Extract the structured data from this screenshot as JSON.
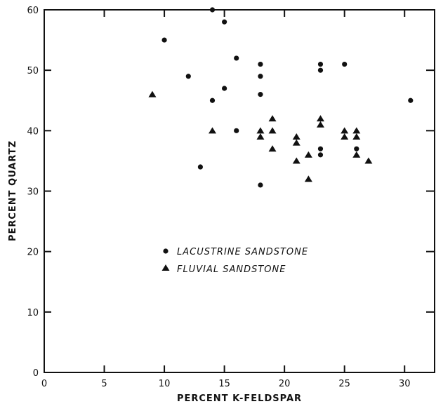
{
  "chart_data": {
    "type": "scatter",
    "title": "",
    "xlabel": "PERCENT K-FELDSPAR",
    "ylabel": "PERCENT QUARTZ",
    "xlim": [
      0,
      32.5
    ],
    "ylim": [
      0,
      60
    ],
    "xticks": [
      0,
      5,
      10,
      15,
      20,
      25,
      30
    ],
    "yticks": [
      0,
      10,
      20,
      30,
      40,
      50,
      60
    ],
    "grid": false,
    "legend_position": "center-left",
    "series": [
      {
        "name": "LACUSTRINE SANDSTONE",
        "marker": "circle",
        "color": "#111111",
        "points": [
          [
            10,
            55
          ],
          [
            12,
            49
          ],
          [
            13,
            34
          ],
          [
            14,
            60
          ],
          [
            14,
            45
          ],
          [
            15,
            58
          ],
          [
            15,
            47
          ],
          [
            16,
            52
          ],
          [
            16,
            40
          ],
          [
            18,
            51
          ],
          [
            18,
            49
          ],
          [
            18,
            46
          ],
          [
            18,
            31
          ],
          [
            23,
            51
          ],
          [
            23,
            50
          ],
          [
            23,
            37
          ],
          [
            23,
            36
          ],
          [
            25,
            51
          ],
          [
            26,
            37
          ],
          [
            30.5,
            45
          ]
        ]
      },
      {
        "name": "FLUVIAL SANDSTONE",
        "marker": "triangle",
        "color": "#111111",
        "points": [
          [
            9,
            46
          ],
          [
            14,
            40
          ],
          [
            18,
            40
          ],
          [
            18,
            39
          ],
          [
            19,
            42
          ],
          [
            19,
            40
          ],
          [
            19,
            37
          ],
          [
            21,
            39
          ],
          [
            21,
            38
          ],
          [
            21,
            35
          ],
          [
            22,
            36
          ],
          [
            22,
            32
          ],
          [
            23,
            42
          ],
          [
            23,
            41
          ],
          [
            25,
            40
          ],
          [
            25,
            39
          ],
          [
            26,
            40
          ],
          [
            26,
            39
          ],
          [
            26,
            36
          ],
          [
            27,
            35
          ]
        ]
      }
    ]
  }
}
